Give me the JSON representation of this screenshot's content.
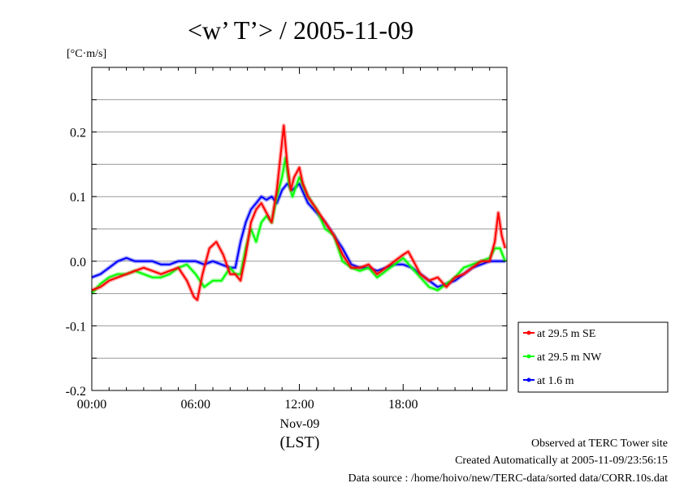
{
  "chart_data": {
    "type": "line",
    "title": "<w’ T’> / 2005-11-09",
    "ylabel": "[°C·m/s]",
    "xlabel_date": "Nov-09",
    "xlabel_unit": "(LST)",
    "x_ticks": [
      "00:00",
      "06:00",
      "12:00",
      "18:00"
    ],
    "x_tick_hours": [
      0,
      6,
      12,
      18
    ],
    "xlim": [
      0,
      24
    ],
    "ylim": [
      -0.2,
      0.3
    ],
    "y_ticks": [
      -0.2,
      -0.1,
      0.0,
      0.1,
      0.2
    ],
    "y_tick_labels": [
      "-0.2",
      "-0.1",
      "0.0",
      "0.1",
      "0.2"
    ],
    "grid": "horizontal",
    "legend_placement": "right",
    "series": [
      {
        "name": "at 29.5 m SE",
        "color": "#ff0000",
        "x": [
          0,
          0.5,
          1,
          1.5,
          2,
          2.5,
          3,
          3.5,
          4,
          4.5,
          5,
          5.5,
          5.9,
          6.1,
          6.4,
          6.8,
          7.2,
          7.6,
          8,
          8.3,
          8.6,
          8.9,
          9.2,
          9.5,
          9.8,
          10.1,
          10.4,
          10.7,
          10.9,
          11.1,
          11.3,
          11.5,
          11.7,
          12,
          12.2,
          12.5,
          13,
          13.5,
          14,
          14.5,
          15,
          15.5,
          16,
          16.5,
          17,
          17.5,
          18,
          18.3,
          18.6,
          19,
          19.5,
          20,
          20.5,
          21,
          21.5,
          22,
          22.5,
          23,
          23.3,
          23.5,
          23.7,
          23.9
        ],
        "y": [
          -0.045,
          -0.04,
          -0.03,
          -0.025,
          -0.02,
          -0.015,
          -0.01,
          -0.015,
          -0.02,
          -0.015,
          -0.01,
          -0.03,
          -0.055,
          -0.06,
          -0.02,
          0.02,
          0.03,
          0.01,
          -0.02,
          -0.02,
          -0.03,
          0.01,
          0.06,
          0.08,
          0.09,
          0.075,
          0.06,
          0.11,
          0.16,
          0.21,
          0.15,
          0.11,
          0.13,
          0.145,
          0.12,
          0.1,
          0.08,
          0.06,
          0.04,
          0.01,
          -0.01,
          -0.01,
          -0.005,
          -0.02,
          -0.01,
          0.0,
          0.01,
          0.015,
          0.0,
          -0.02,
          -0.03,
          -0.025,
          -0.04,
          -0.025,
          -0.02,
          -0.01,
          0.0,
          0.0,
          0.03,
          0.075,
          0.04,
          0.02
        ]
      },
      {
        "name": "at 29.5 m NW",
        "color": "#00ff00",
        "x": [
          0,
          0.5,
          1,
          1.5,
          2,
          2.5,
          3,
          3.5,
          4,
          4.5,
          5,
          5.5,
          6,
          6.5,
          7,
          7.5,
          8,
          8.3,
          8.6,
          8.9,
          9.2,
          9.5,
          9.8,
          10.1,
          10.4,
          10.7,
          11,
          11.2,
          11.4,
          11.6,
          12,
          12.5,
          13,
          13.5,
          14,
          14.5,
          15,
          15.5,
          16,
          16.5,
          17,
          17.5,
          18,
          18.5,
          19,
          19.5,
          20,
          20.5,
          21,
          21.5,
          22,
          22.5,
          23,
          23.3,
          23.6,
          23.9
        ],
        "y": [
          -0.05,
          -0.035,
          -0.025,
          -0.02,
          -0.02,
          -0.015,
          -0.02,
          -0.025,
          -0.025,
          -0.02,
          -0.01,
          -0.005,
          -0.02,
          -0.04,
          -0.03,
          -0.03,
          -0.01,
          -0.02,
          -0.02,
          0.02,
          0.05,
          0.03,
          0.06,
          0.07,
          0.06,
          0.1,
          0.13,
          0.16,
          0.12,
          0.1,
          0.13,
          0.1,
          0.08,
          0.05,
          0.04,
          0.0,
          -0.01,
          -0.015,
          -0.01,
          -0.025,
          -0.015,
          -0.005,
          0.005,
          -0.01,
          -0.025,
          -0.04,
          -0.045,
          -0.035,
          -0.025,
          -0.01,
          -0.005,
          0.0,
          0.005,
          0.02,
          0.02,
          0.0
        ]
      },
      {
        "name": "at 1.6 m",
        "color": "#0000ff",
        "x": [
          0,
          0.5,
          1,
          1.5,
          2,
          2.5,
          3,
          3.5,
          4,
          4.5,
          5,
          5.5,
          6,
          6.5,
          7,
          7.5,
          8,
          8.3,
          8.6,
          8.9,
          9.2,
          9.5,
          9.8,
          10.1,
          10.4,
          10.7,
          11,
          11.3,
          11.6,
          12,
          12.5,
          13,
          13.5,
          14,
          14.5,
          15,
          15.5,
          16,
          16.5,
          17,
          17.5,
          18,
          18.5,
          19,
          19.5,
          20,
          20.5,
          21,
          21.5,
          22,
          22.5,
          23,
          23.5,
          23.9
        ],
        "y": [
          -0.025,
          -0.02,
          -0.01,
          0.0,
          0.005,
          0.0,
          0.0,
          0.0,
          -0.005,
          -0.005,
          0.0,
          0.0,
          0.0,
          -0.005,
          0.0,
          -0.005,
          -0.01,
          -0.01,
          0.03,
          0.06,
          0.08,
          0.09,
          0.1,
          0.095,
          0.1,
          0.09,
          0.11,
          0.12,
          0.11,
          0.12,
          0.09,
          0.075,
          0.06,
          0.04,
          0.02,
          -0.005,
          -0.01,
          -0.01,
          -0.015,
          -0.01,
          -0.005,
          -0.005,
          -0.01,
          -0.02,
          -0.03,
          -0.04,
          -0.035,
          -0.03,
          -0.02,
          -0.01,
          -0.005,
          0.0,
          0.0,
          0.0
        ]
      }
    ]
  },
  "footer": {
    "line1": "Observed at TERC Tower site",
    "line2": "Created Automatically at 2005-11-09/23:56:15",
    "line3": "Data source : /home/hoivo/new/TERC-data/sorted  data/CORR.10s.dat"
  }
}
